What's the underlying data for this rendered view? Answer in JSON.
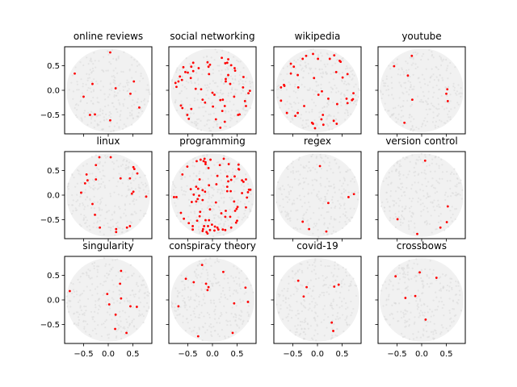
{
  "chart_data": [
    {
      "type": "scatter",
      "title": "online reviews",
      "points": [
        [
          0.04,
          0.77
        ],
        [
          -0.68,
          0.34
        ],
        [
          -0.32,
          0.13
        ],
        [
          0.15,
          0.04
        ],
        [
          0.52,
          0.18
        ],
        [
          -0.5,
          -0.13
        ],
        [
          0.45,
          -0.07
        ],
        [
          0.63,
          -0.35
        ],
        [
          -0.37,
          -0.5
        ],
        [
          -0.27,
          -0.49
        ],
        [
          0.04,
          -0.61
        ]
      ]
    },
    {
      "type": "scatter",
      "title": "social networking",
      "points": [
        [
          0.19,
          0.66
        ],
        [
          0.32,
          0.63
        ],
        [
          0.26,
          0.55
        ],
        [
          0.3,
          0.56
        ],
        [
          0.38,
          0.51
        ],
        [
          0.45,
          0.45
        ],
        [
          0.46,
          0.4
        ],
        [
          0.32,
          0.31
        ],
        [
          0.27,
          0.23
        ],
        [
          0.27,
          0.18
        ],
        [
          0.36,
          0.13
        ],
        [
          0.63,
          0.27
        ],
        [
          0.62,
          0.06
        ],
        [
          0.76,
          -0.01
        ],
        [
          0.73,
          -0.06
        ],
        [
          0.44,
          -0.13
        ],
        [
          0.66,
          -0.22
        ],
        [
          0.68,
          -0.32
        ],
        [
          0.55,
          -0.49
        ],
        [
          0.52,
          -0.5
        ],
        [
          0.25,
          -0.32
        ],
        [
          0.2,
          -0.42
        ],
        [
          0.21,
          -0.19
        ],
        [
          0.16,
          -0.2
        ],
        [
          0.04,
          -0.09
        ],
        [
          0.0,
          -0.05
        ],
        [
          0.01,
          -0.33
        ],
        [
          -0.2,
          -0.19
        ],
        [
          -0.15,
          -0.25
        ],
        [
          -0.23,
          0.02
        ],
        [
          -0.34,
          0.03
        ],
        [
          -0.07,
          0.33
        ],
        [
          -0.1,
          0.57
        ],
        [
          -0.05,
          0.52
        ],
        [
          -0.08,
          0.48
        ],
        [
          -0.28,
          0.45
        ],
        [
          -0.39,
          0.56
        ],
        [
          -0.43,
          0.48
        ],
        [
          -0.59,
          0.47
        ],
        [
          -0.55,
          0.37
        ],
        [
          -0.5,
          0.36
        ],
        [
          -0.39,
          0.39
        ],
        [
          -0.44,
          0.25
        ],
        [
          -0.66,
          0.28
        ],
        [
          -0.62,
          0.21
        ],
        [
          -0.69,
          0.18
        ],
        [
          -0.75,
          0.15
        ],
        [
          -0.73,
          0.07
        ],
        [
          -0.43,
          -0.38
        ],
        [
          -0.64,
          -0.31
        ],
        [
          -0.61,
          -0.36
        ],
        [
          -0.51,
          -0.5
        ],
        [
          -0.48,
          -0.58
        ],
        [
          0.07,
          -0.59
        ],
        [
          0.25,
          -0.64
        ],
        [
          0.16,
          -0.76
        ]
      ]
    },
    {
      "type": "scatter",
      "title": "wikipedia",
      "points": [
        [
          -0.09,
          0.74
        ],
        [
          -0.23,
          0.7
        ],
        [
          -0.3,
          0.64
        ],
        [
          0.01,
          0.64
        ],
        [
          0.25,
          0.64
        ],
        [
          0.34,
          0.71
        ],
        [
          0.45,
          0.6
        ],
        [
          0.47,
          0.58
        ],
        [
          -0.54,
          0.54
        ],
        [
          -0.48,
          0.48
        ],
        [
          -0.54,
          0.34
        ],
        [
          -0.4,
          0.31
        ],
        [
          -0.07,
          0.25
        ],
        [
          0.38,
          0.37
        ],
        [
          0.61,
          0.33
        ],
        [
          0.51,
          0.26
        ],
        [
          -0.68,
          0.11
        ],
        [
          -0.67,
          0.09
        ],
        [
          -0.74,
          0.06
        ],
        [
          -0.39,
          0.06
        ],
        [
          0.09,
          -0.02
        ],
        [
          0.02,
          -0.09
        ],
        [
          0.22,
          -0.17
        ],
        [
          0.59,
          -0.17
        ],
        [
          0.73,
          -0.06
        ],
        [
          0.7,
          -0.2
        ],
        [
          0.72,
          -0.18
        ],
        [
          0.61,
          -0.26
        ],
        [
          0.4,
          -0.28
        ],
        [
          -0.74,
          -0.21
        ],
        [
          -0.27,
          -0.32
        ],
        [
          -0.62,
          -0.46
        ],
        [
          -0.4,
          -0.46
        ],
        [
          -0.45,
          -0.52
        ],
        [
          0.11,
          -0.5
        ],
        [
          0.08,
          -0.59
        ],
        [
          -0.11,
          -0.66
        ],
        [
          -0.09,
          -0.68
        ],
        [
          0.12,
          -0.7
        ],
        [
          -0.05,
          -0.77
        ],
        [
          0.33,
          -0.62
        ],
        [
          0.39,
          -0.68
        ]
      ]
    },
    {
      "type": "scatter",
      "title": "youtube",
      "points": [
        [
          -0.2,
          0.7
        ],
        [
          -0.56,
          0.49
        ],
        [
          -0.28,
          0.3
        ],
        [
          0.52,
          0.02
        ],
        [
          0.5,
          -0.07
        ],
        [
          0.53,
          -0.22
        ],
        [
          -0.19,
          -0.19
        ],
        [
          -0.35,
          -0.66
        ]
      ]
    },
    {
      "type": "scatter",
      "title": "linux",
      "points": [
        [
          -0.18,
          0.77
        ],
        [
          0.05,
          0.77
        ],
        [
          -0.25,
          0.61
        ],
        [
          0.51,
          0.57
        ],
        [
          0.53,
          0.53
        ],
        [
          0.59,
          0.44
        ],
        [
          -0.44,
          0.42
        ],
        [
          -0.42,
          0.3
        ],
        [
          -0.47,
          0.24
        ],
        [
          -0.25,
          0.32
        ],
        [
          0.25,
          0.34
        ],
        [
          0.44,
          0.34
        ],
        [
          -0.55,
          0.05
        ],
        [
          0.51,
          0.07
        ],
        [
          0.48,
          0.03
        ],
        [
          0.77,
          -0.03
        ],
        [
          -0.32,
          -0.18
        ],
        [
          -0.27,
          -0.4
        ],
        [
          -0.17,
          -0.66
        ],
        [
          0.16,
          -0.69
        ],
        [
          0.16,
          -0.75
        ],
        [
          0.38,
          -0.66
        ],
        [
          0.44,
          -0.63
        ]
      ]
    },
    {
      "type": "scatter",
      "title": "programming",
      "points": [
        [
          -0.32,
          0.69
        ],
        [
          -0.24,
          0.72
        ],
        [
          -0.16,
          0.74
        ],
        [
          -0.18,
          0.69
        ],
        [
          -0.14,
          0.67
        ],
        [
          -0.14,
          0.63
        ],
        [
          -0.04,
          0.72
        ],
        [
          0.23,
          0.74
        ],
        [
          -0.51,
          0.58
        ],
        [
          -0.08,
          0.55
        ],
        [
          0.15,
          0.61
        ],
        [
          0.33,
          0.63
        ],
        [
          0.53,
          0.62
        ],
        [
          0.53,
          0.53
        ],
        [
          0.54,
          0.52
        ],
        [
          -0.61,
          0.42
        ],
        [
          -0.26,
          0.32
        ],
        [
          0.1,
          0.39
        ],
        [
          0.3,
          0.38
        ],
        [
          0.45,
          0.38
        ],
        [
          0.38,
          0.31
        ],
        [
          0.32,
          0.28
        ],
        [
          0.6,
          0.3
        ],
        [
          0.68,
          0.32
        ],
        [
          0.63,
          0.27
        ],
        [
          0.08,
          0.22
        ],
        [
          -0.07,
          0.2
        ],
        [
          0.3,
          0.17
        ],
        [
          0.3,
          0.08
        ],
        [
          0.37,
          0.08
        ],
        [
          -0.33,
          0.17
        ],
        [
          -0.29,
          0.13
        ],
        [
          -0.44,
          0.12
        ],
        [
          -0.2,
          0.1
        ],
        [
          -0.15,
          0.07
        ],
        [
          -0.38,
          0.01
        ],
        [
          -0.27,
          -0.01
        ],
        [
          -0.78,
          -0.04
        ],
        [
          -0.73,
          -0.04
        ],
        [
          -0.3,
          -0.08
        ],
        [
          -0.33,
          -0.13
        ],
        [
          -0.2,
          -0.1
        ],
        [
          -0.42,
          -0.14
        ],
        [
          0.07,
          -0.15
        ],
        [
          0.6,
          0.04
        ],
        [
          0.74,
          0.11
        ],
        [
          0.77,
          0.11
        ],
        [
          0.72,
          0.06
        ],
        [
          0.7,
          -0.05
        ],
        [
          0.44,
          -0.13
        ],
        [
          0.68,
          -0.25
        ],
        [
          0.51,
          -0.24
        ],
        [
          0.49,
          -0.28
        ],
        [
          0.46,
          -0.32
        ],
        [
          0.27,
          -0.32
        ],
        [
          0.18,
          -0.37
        ],
        [
          -0.05,
          -0.29
        ],
        [
          -0.25,
          -0.34
        ],
        [
          -0.26,
          -0.43
        ],
        [
          -0.64,
          -0.36
        ],
        [
          -0.58,
          -0.48
        ],
        [
          -0.48,
          -0.57
        ],
        [
          -0.4,
          -0.63
        ],
        [
          -0.4,
          -0.7
        ],
        [
          -0.31,
          -0.52
        ],
        [
          -0.14,
          -0.51
        ],
        [
          -0.07,
          -0.51
        ],
        [
          -0.17,
          -0.63
        ],
        [
          -0.09,
          -0.63
        ],
        [
          -0.01,
          -0.6
        ],
        [
          0.05,
          -0.64
        ],
        [
          -0.19,
          -0.69
        ],
        [
          -0.2,
          -0.73
        ],
        [
          -0.12,
          -0.75
        ],
        [
          -0.1,
          -0.78
        ],
        [
          -0.05,
          -0.71
        ],
        [
          0.04,
          -0.72
        ],
        [
          0.1,
          -0.66
        ],
        [
          0.12,
          -0.7
        ],
        [
          0.21,
          -0.7
        ],
        [
          0.26,
          -0.71
        ],
        [
          0.38,
          -0.66
        ],
        [
          0.26,
          -0.44
        ],
        [
          0.36,
          -0.44
        ],
        [
          0.48,
          -0.56
        ],
        [
          0.5,
          -0.52
        ]
      ]
    },
    {
      "type": "scatter",
      "title": "regex",
      "points": [
        [
          0.05,
          0.59
        ],
        [
          0.63,
          -0.04
        ],
        [
          0.74,
          0.02
        ],
        [
          0.22,
          -0.16
        ],
        [
          -0.3,
          -0.54
        ],
        [
          -0.17,
          -0.69
        ],
        [
          0.18,
          -0.74
        ]
      ]
    },
    {
      "type": "scatter",
      "title": "version control",
      "points": [
        [
          0.07,
          0.7
        ],
        [
          0.53,
          -0.23
        ],
        [
          0.51,
          -0.55
        ],
        [
          0.38,
          -0.66
        ],
        [
          -0.09,
          -0.79
        ],
        [
          -0.49,
          -0.49
        ]
      ]
    },
    {
      "type": "scatter",
      "title": "singularity",
      "points": [
        [
          0.26,
          0.59
        ],
        [
          0.24,
          0.33
        ],
        [
          -0.78,
          0.18
        ],
        [
          -0.02,
          0.12
        ],
        [
          0.26,
          0.03
        ],
        [
          0.02,
          -0.09
        ],
        [
          0.45,
          -0.13
        ],
        [
          0.58,
          -0.14
        ],
        [
          0.15,
          -0.3
        ],
        [
          0.14,
          -0.59
        ],
        [
          0.37,
          -0.67
        ]
      ]
    },
    {
      "type": "scatter",
      "title": "conspiracy theory",
      "points": [
        [
          -0.21,
          0.71
        ],
        [
          0.22,
          0.57
        ],
        [
          -0.54,
          0.43
        ],
        [
          -0.38,
          0.36
        ],
        [
          -0.13,
          0.33
        ],
        [
          -0.08,
          0.26
        ],
        [
          -0.1,
          0.2
        ],
        [
          0.67,
          0.25
        ],
        [
          0.72,
          -0.04
        ],
        [
          0.44,
          -0.07
        ],
        [
          -0.69,
          -0.13
        ],
        [
          0.41,
          -0.67
        ],
        [
          -0.29,
          -0.74
        ]
      ]
    },
    {
      "type": "scatter",
      "title": "covid-19",
      "points": [
        [
          -0.39,
          0.39
        ],
        [
          -0.22,
          0.26
        ],
        [
          -0.28,
          0.07
        ],
        [
          0.34,
          0.27
        ],
        [
          0.43,
          0.31
        ],
        [
          0.29,
          -0.46
        ],
        [
          0.32,
          -0.63
        ]
      ]
    },
    {
      "type": "scatter",
      "title": "crossbows",
      "points": [
        [
          -0.53,
          0.48
        ],
        [
          -0.04,
          0.56
        ],
        [
          0.3,
          0.45
        ],
        [
          -0.33,
          0.04
        ],
        [
          -0.13,
          0.08
        ],
        [
          0.08,
          -0.4
        ]
      ]
    }
  ],
  "axes": {
    "xlim": [
      -0.885,
      0.885
    ],
    "ylim": [
      -0.885,
      0.885
    ],
    "ticks": [
      -0.5,
      0.0,
      0.5
    ],
    "tick_labels": [
      "−0.5",
      "0.0",
      "0.5"
    ],
    "background_disk_radius": 0.85
  },
  "colors": {
    "points": "#ff0000",
    "background_cloud": "#e6e6e6",
    "frame": "#000000"
  }
}
